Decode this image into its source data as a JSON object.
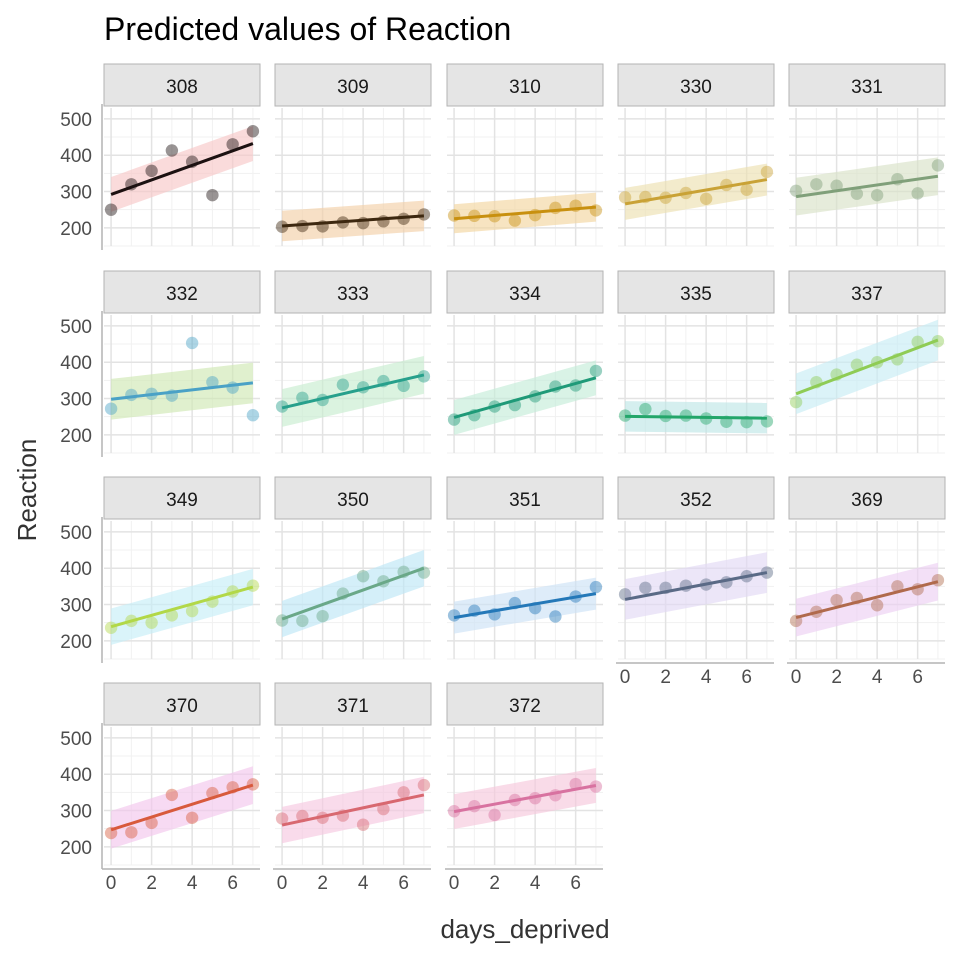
{
  "chart_data": {
    "type": "scatter",
    "title": "Predicted values of Reaction",
    "xlabel": "days_deprived",
    "ylabel": "Reaction",
    "xlim": [
      -0.35,
      7.35
    ],
    "ylim": [
      150,
      530
    ],
    "x_ticks": [
      0,
      2,
      4,
      6
    ],
    "x_tick_labels": [
      "0",
      "2",
      "4",
      "6"
    ],
    "y_ticks": [
      200,
      300,
      400,
      500
    ],
    "y_tick_labels": [
      "200",
      "300",
      "400",
      "500"
    ],
    "x": [
      0,
      1,
      2,
      3,
      4,
      5,
      6,
      7
    ],
    "panels": [
      {
        "label": "308",
        "color": "#1c1111",
        "ribbon_color": "#f8c8c8",
        "points": [
          250,
          320,
          357,
          413,
          382,
          290,
          430,
          466
        ],
        "fit": [
          292,
          432
        ],
        "ribbon_half_width": 48
      },
      {
        "label": "309",
        "color": "#3d2810",
        "ribbon_color": "#f2cfa8",
        "points": [
          203,
          205,
          204,
          215,
          213,
          218,
          225,
          237
        ],
        "fit": [
          205,
          233
        ],
        "ribbon_half_width": 42
      },
      {
        "label": "310",
        "color": "#c8900f",
        "ribbon_color": "#f2d5a0",
        "points": [
          234,
          233,
          232,
          220,
          235,
          255,
          261,
          248
        ],
        "fit": [
          225,
          257
        ],
        "ribbon_half_width": 40
      },
      {
        "label": "330",
        "color": "#c9a236",
        "ribbon_color": "#ece0b0",
        "points": [
          284,
          285,
          283,
          296,
          280,
          318,
          305,
          354
        ],
        "fit": [
          266,
          333
        ],
        "ribbon_half_width": 44
      },
      {
        "label": "331",
        "color": "#80a07a",
        "ribbon_color": "#d8e2c8",
        "points": [
          302,
          320,
          316,
          294,
          290,
          334,
          295,
          372
        ],
        "fit": [
          286,
          342
        ],
        "ribbon_half_width": 52
      },
      {
        "label": "332",
        "color": "#4aa1c6",
        "ribbon_color": "#cfe8b4",
        "points": [
          272,
          310,
          313,
          308,
          453,
          345,
          330,
          254
        ],
        "fit": [
          298,
          343
        ],
        "ribbon_half_width": 56
      },
      {
        "label": "333",
        "color": "#27a08c",
        "ribbon_color": "#c8ecd0",
        "points": [
          278,
          302,
          296,
          338,
          331,
          348,
          335,
          361
        ],
        "fit": [
          274,
          365
        ],
        "ribbon_half_width": 52
      },
      {
        "label": "334",
        "color": "#1f9a78",
        "ribbon_color": "#c4ecd8",
        "points": [
          242,
          254,
          278,
          282,
          306,
          333,
          336,
          376
        ],
        "fit": [
          248,
          357
        ],
        "ribbon_half_width": 48
      },
      {
        "label": "335",
        "color": "#23a66a",
        "ribbon_color": "#bfe6e6",
        "points": [
          253,
          271,
          252,
          253,
          245,
          236,
          235,
          237
        ],
        "fit": [
          251,
          246
        ],
        "ribbon_half_width": 42
      },
      {
        "label": "337",
        "color": "#8fcc55",
        "ribbon_color": "#c8ecf4",
        "points": [
          290,
          345,
          366,
          393,
          400,
          408,
          456,
          458
        ],
        "fit": [
          313,
          461
        ],
        "ribbon_half_width": 56
      },
      {
        "label": "349",
        "color": "#b2d848",
        "ribbon_color": "#c6eef8",
        "points": [
          236,
          255,
          250,
          270,
          282,
          308,
          336,
          352
        ],
        "fit": [
          239,
          348
        ],
        "ribbon_half_width": 50
      },
      {
        "label": "350",
        "color": "#6aa888",
        "ribbon_color": "#bde6f6",
        "points": [
          256,
          255,
          268,
          330,
          378,
          364,
          390,
          388
        ],
        "fit": [
          260,
          400
        ],
        "ribbon_half_width": 50
      },
      {
        "label": "351",
        "color": "#2478b8",
        "ribbon_color": "#cce2f6",
        "points": [
          270,
          283,
          273,
          304,
          290,
          267,
          322,
          348
        ],
        "fit": [
          264,
          330
        ],
        "ribbon_half_width": 44
      },
      {
        "label": "352",
        "color": "#5a6a86",
        "ribbon_color": "#e2d8f4",
        "points": [
          328,
          346,
          346,
          352,
          355,
          361,
          378,
          388
        ],
        "fit": [
          314,
          388
        ],
        "ribbon_half_width": 56
      },
      {
        "label": "369",
        "color": "#b06a4c",
        "ribbon_color": "#ecd0f2",
        "points": [
          255,
          280,
          312,
          318,
          298,
          350,
          342,
          367
        ],
        "fit": [
          264,
          363
        ],
        "ribbon_half_width": 52
      },
      {
        "label": "370",
        "color": "#d85a3c",
        "ribbon_color": "#f2c6ec",
        "points": [
          238,
          240,
          266,
          343,
          280,
          348,
          364,
          372
        ],
        "fit": [
          247,
          370
        ],
        "ribbon_half_width": 52
      },
      {
        "label": "371",
        "color": "#d86870",
        "ribbon_color": "#f6c8e0",
        "points": [
          278,
          285,
          280,
          286,
          261,
          304,
          350,
          370
        ],
        "fit": [
          260,
          343
        ],
        "ribbon_half_width": 50
      },
      {
        "label": "372",
        "color": "#d872a0",
        "ribbon_color": "#f6c8dc",
        "points": [
          298,
          312,
          288,
          329,
          334,
          342,
          373,
          366
        ],
        "fit": [
          297,
          369
        ],
        "ribbon_half_width": 48
      }
    ]
  }
}
